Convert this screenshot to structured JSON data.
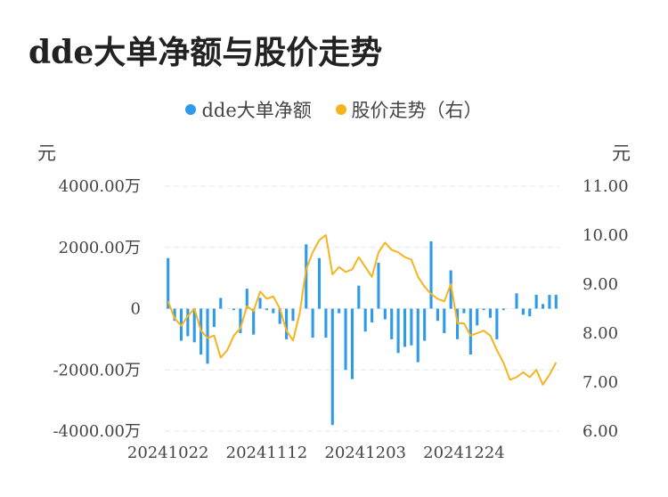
{
  "title": "dde大单净额与股价走势",
  "chart_data": {
    "type": "bar+line",
    "title": "dde大单净额与股价走势",
    "legend": [
      {
        "name": "dde大单净额",
        "color": "#2f9be8"
      },
      {
        "name": "股价走势（右）",
        "color": "#f5b41e"
      }
    ],
    "legend_position": "top",
    "left_axis": {
      "unit": "元",
      "min": -4000,
      "max": 4000,
      "tick_labels": [
        "4000.00万",
        "2000.00万",
        "0",
        "-2000.00万",
        "-4000.00万"
      ],
      "tick_values": [
        4000,
        2000,
        0,
        -2000,
        -4000
      ]
    },
    "right_axis": {
      "unit": "元",
      "min": 6.0,
      "max": 11.0,
      "tick_labels": [
        "11.00",
        "10.00",
        "9.00",
        "8.00",
        "7.00",
        "6.00"
      ],
      "tick_values": [
        11,
        10,
        9,
        8,
        7,
        6
      ]
    },
    "x_tick_labels": [
      "20241022",
      "20241112",
      "20241203",
      "20241224"
    ],
    "x_tick_indices": [
      0,
      15,
      30,
      45
    ],
    "grid": "horizontal-dashed",
    "bar_values": [
      1650,
      -400,
      -1050,
      -900,
      -1100,
      -1500,
      -1800,
      -600,
      350,
      0,
      -50,
      -800,
      650,
      -850,
      350,
      -50,
      -150,
      -500,
      -1000,
      -400,
      0,
      2100,
      -950,
      1650,
      -950,
      -3800,
      -150,
      -2000,
      -2300,
      750,
      -750,
      -450,
      1500,
      -350,
      -1000,
      -1450,
      -1250,
      -1200,
      -1750,
      -1050,
      2200,
      -400,
      -800,
      1250,
      -1000,
      -150,
      -1500,
      -550,
      -50,
      -300,
      -1000,
      -50,
      0,
      500,
      -200,
      -250,
      450,
      150,
      450,
      450
    ],
    "price_values": [
      8.65,
      8.3,
      8.15,
      8.35,
      8.5,
      8.05,
      7.9,
      7.95,
      7.5,
      7.65,
      7.95,
      8.1,
      8.55,
      8.45,
      8.85,
      8.7,
      8.75,
      8.5,
      8.05,
      7.85,
      8.4,
      9.3,
      9.65,
      9.9,
      10.0,
      9.2,
      9.35,
      9.25,
      9.3,
      9.55,
      9.35,
      9.15,
      9.65,
      9.85,
      9.7,
      9.65,
      9.55,
      9.5,
      9.15,
      8.95,
      8.8,
      8.7,
      8.65,
      9.0,
      8.2,
      8.2,
      7.95,
      8.0,
      8.05,
      7.95,
      7.65,
      7.4,
      7.05,
      7.1,
      7.2,
      7.1,
      7.25,
      6.95,
      7.15,
      7.4
    ]
  }
}
